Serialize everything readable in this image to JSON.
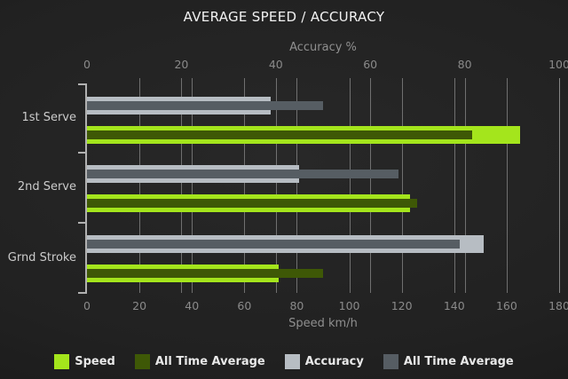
{
  "chart_data": {
    "type": "bar",
    "orientation": "horizontal",
    "title": "AVERAGE SPEED / ACCURACY",
    "categories": [
      "1st Serve",
      "2nd Serve",
      "Grnd Stroke"
    ],
    "axes": {
      "top": {
        "label": "Accuracy %",
        "min": 0,
        "max": 100,
        "ticks": [
          0,
          20,
          40,
          60,
          80,
          100
        ]
      },
      "bottom": {
        "label": "Speed km/h",
        "min": 0,
        "max": 180,
        "ticks": [
          0,
          20,
          40,
          60,
          80,
          100,
          120,
          140,
          160,
          180
        ]
      }
    },
    "series": [
      {
        "name": "Speed",
        "axis": "bottom",
        "style": "thick",
        "color": "#a4e51c",
        "values": [
          165,
          123,
          73
        ]
      },
      {
        "name": "All Time Average",
        "axis": "bottom",
        "style": "overlay",
        "color": "#3e5806",
        "values": [
          147,
          126,
          90
        ]
      },
      {
        "name": "Accuracy",
        "axis": "top",
        "style": "thick",
        "color": "#b7bdc3",
        "values": [
          39,
          45,
          84
        ]
      },
      {
        "name": "All Time Average",
        "axis": "top",
        "style": "overlay",
        "color": "#565d63",
        "values": [
          50,
          66,
          79
        ]
      }
    ],
    "grid": true,
    "legend": {
      "position": "bottom",
      "entries": [
        {
          "label": "Speed",
          "color": "#a4e51c"
        },
        {
          "label": "All Time Average",
          "color": "#3e5806"
        },
        {
          "label": "Accuracy",
          "color": "#b7bdc3"
        },
        {
          "label": "All Time Average",
          "color": "#565d63"
        }
      ]
    }
  },
  "colors": {
    "background": "#212121",
    "gridline": "#8d8d8d",
    "axis_line": "#b0b0b0",
    "title_text": "#f2f2f2",
    "tick_text": "#8a8a8a",
    "category_text": "#cbcbcb",
    "legend_text": "#e8e8e8"
  }
}
